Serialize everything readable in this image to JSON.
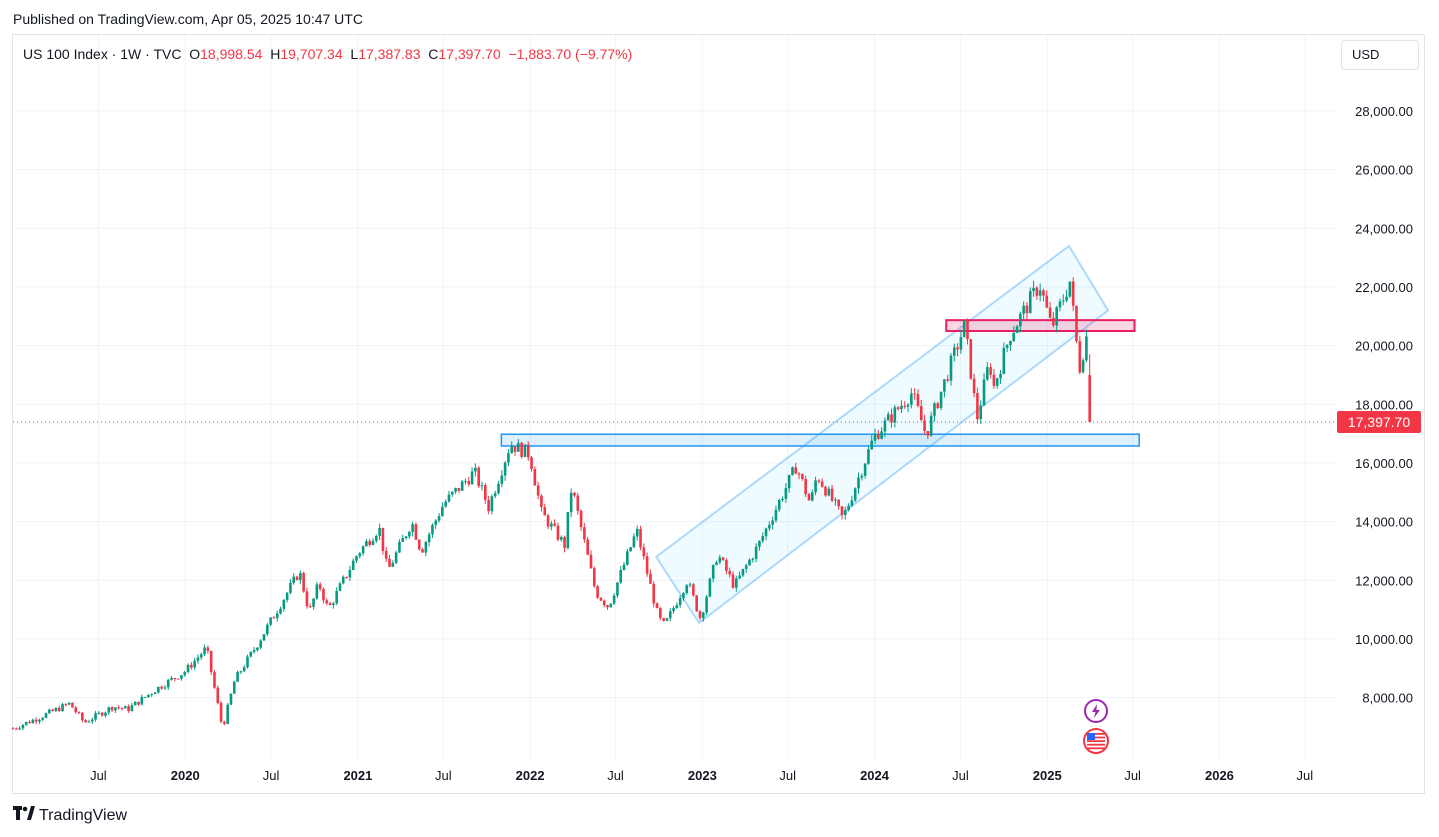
{
  "header": {
    "published": "Published on TradingView.com, Apr 05, 2025 10:47 UTC"
  },
  "legend": {
    "symbol": "US 100 Index · 1W · TVC",
    "o_label": "O",
    "o": "18,998.54",
    "h_label": "H",
    "h": "19,707.34",
    "l_label": "L",
    "l": "17,387.83",
    "c_label": "C",
    "c": "17,397.70",
    "change": "−1,883.70 (−9.77%)"
  },
  "currency": "USD",
  "footer": {
    "brand": "TradingView",
    "logo_icon": "tradingview-logo-icon"
  },
  "colors": {
    "up": "#089981",
    "down": "#f23645",
    "channel": "#2196f3",
    "resistance": "#e91e63",
    "last_price_bg": "#f23645"
  },
  "icons": [
    "lightning-icon",
    "us-flag-icon"
  ],
  "chart_data": {
    "type": "candlestick",
    "timeframe": "1W",
    "x_range": [
      "2019-01-01",
      "2026-09-05"
    ],
    "ylim": [
      6700,
      30000
    ],
    "y_ticks": [
      8000,
      10000,
      12000,
      14000,
      16000,
      18000,
      20000,
      22000,
      24000,
      26000,
      28000
    ],
    "y_tick_labels": [
      "8,000.00",
      "10,000.00",
      "12,000.00",
      "14,000.00",
      "16,000.00",
      "18,000.00",
      "20,000.00",
      "22,000.00",
      "24,000.00",
      "26,000.00",
      "28,000.00"
    ],
    "x_ticks": [
      {
        "date": "2019-07-01",
        "label": "Jul",
        "bold": false
      },
      {
        "date": "2020-01-01",
        "label": "2020",
        "bold": true
      },
      {
        "date": "2020-07-01",
        "label": "Jul",
        "bold": false
      },
      {
        "date": "2021-01-01",
        "label": "2021",
        "bold": true
      },
      {
        "date": "2021-07-01",
        "label": "Jul",
        "bold": false
      },
      {
        "date": "2022-01-01",
        "label": "2022",
        "bold": true
      },
      {
        "date": "2022-07-01",
        "label": "Jul",
        "bold": false
      },
      {
        "date": "2023-01-01",
        "label": "2023",
        "bold": true
      },
      {
        "date": "2023-07-01",
        "label": "Jul",
        "bold": false
      },
      {
        "date": "2024-01-01",
        "label": "2024",
        "bold": true
      },
      {
        "date": "2024-07-01",
        "label": "Jul",
        "bold": false
      },
      {
        "date": "2025-01-01",
        "label": "2025",
        "bold": true
      },
      {
        "date": "2025-07-01",
        "label": "Jul",
        "bold": false
      },
      {
        "date": "2026-01-01",
        "label": "2026",
        "bold": true
      },
      {
        "date": "2026-07-01",
        "label": "Jul",
        "bold": false
      }
    ],
    "last_price": 17397.7,
    "last_price_label": "17,397.70",
    "price_path": [
      [
        "2019-01-01",
        6950
      ],
      [
        "2019-03-01",
        7350
      ],
      [
        "2019-05-01",
        7800
      ],
      [
        "2019-06-01",
        7150
      ],
      [
        "2019-08-01",
        7700
      ],
      [
        "2019-09-01",
        7600
      ],
      [
        "2019-11-01",
        8300
      ],
      [
        "2020-01-01",
        8900
      ],
      [
        "2020-02-15",
        9700
      ],
      [
        "2020-03-20",
        6950
      ],
      [
        "2020-04-15",
        8600
      ],
      [
        "2020-06-01",
        9800
      ],
      [
        "2020-08-30",
        12300
      ],
      [
        "2020-09-20",
        10900
      ],
      [
        "2020-10-10",
        11900
      ],
      [
        "2020-10-30",
        11000
      ],
      [
        "2020-12-31",
        12900
      ],
      [
        "2021-02-15",
        13800
      ],
      [
        "2021-03-05",
        12300
      ],
      [
        "2021-04-25",
        14000
      ],
      [
        "2021-05-15",
        13000
      ],
      [
        "2021-07-01",
        14600
      ],
      [
        "2021-09-05",
        15700
      ],
      [
        "2021-10-05",
        14500
      ],
      [
        "2021-11-20",
        16650
      ],
      [
        "2021-12-31",
        16300
      ],
      [
        "2022-01-25",
        14300
      ],
      [
        "2022-03-15",
        13200
      ],
      [
        "2022-03-30",
        15200
      ],
      [
        "2022-05-20",
        11600
      ],
      [
        "2022-06-16",
        11100
      ],
      [
        "2022-08-15",
        13700
      ],
      [
        "2022-09-30",
        10700
      ],
      [
        "2022-10-13",
        10450
      ],
      [
        "2022-11-30",
        12000
      ],
      [
        "2022-12-28",
        10700
      ],
      [
        "2023-02-02",
        12900
      ],
      [
        "2023-03-10",
        11800
      ],
      [
        "2023-04-30",
        13200
      ],
      [
        "2023-07-19",
        15900
      ],
      [
        "2023-08-18",
        14600
      ],
      [
        "2023-09-01",
        15600
      ],
      [
        "2023-10-26",
        14100
      ],
      [
        "2023-12-31",
        16900
      ],
      [
        "2024-03-20",
        18400
      ],
      [
        "2024-04-19",
        16970
      ],
      [
        "2024-07-10",
        20700
      ],
      [
        "2024-08-05",
        17500
      ],
      [
        "2024-09-01",
        19500
      ],
      [
        "2024-09-08",
        18500
      ],
      [
        "2024-10-15",
        20400
      ],
      [
        "2024-12-16",
        22100
      ],
      [
        "2025-01-10",
        20600
      ],
      [
        "2025-02-18",
        22200
      ],
      [
        "2025-03-10",
        19200
      ],
      [
        "2025-03-25",
        20300
      ],
      [
        "2025-04-04",
        17397.7
      ]
    ],
    "annotations": {
      "channel_polygon": [
        [
          "2022-09-25",
          12800
        ],
        [
          "2025-02-16",
          23400
        ],
        [
          "2025-05-10",
          21200
        ],
        [
          "2022-12-25",
          10550
        ]
      ],
      "resistance_zone": {
        "x0": "2024-06-01",
        "x1": "2025-07-05",
        "y0": 20500,
        "y1": 20870
      },
      "support_zone": {
        "x0": "2021-11-01",
        "x1": "2025-07-15",
        "y0": 16580,
        "y1": 16980
      }
    }
  }
}
